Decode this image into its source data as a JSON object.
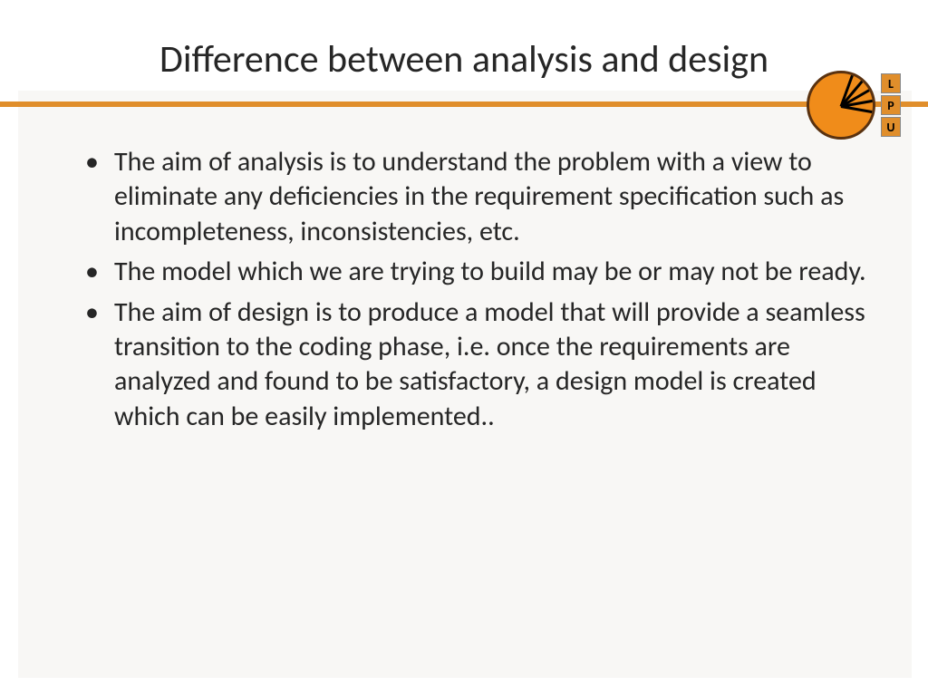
{
  "title": "Difference between analysis and design",
  "logo": {
    "letters": [
      "L",
      "P",
      "U"
    ],
    "circle_fill": "#f08c1a",
    "circle_border": "#5a3210",
    "ray_color": "#000000",
    "letter_bg": "#e08e2b"
  },
  "rule_color": "#e08e2b",
  "background_panel": "#f8f7f5",
  "text_color": "#262626",
  "title_fontsize": 42,
  "body_fontsize": 30,
  "bullets": [
    "The aim of analysis is to understand the problem with a view to eliminate any  deficiencies in the requirement specification such as incompleteness, inconsistencies, etc.",
    "The model which we are trying to build may be or may not be ready.",
    "The aim of design is to produce a model that will provide a seamless transition to the coding phase, i.e. once the requirements are analyzed and found to be satisfactory, a design model is created which can be easily implemented.."
  ]
}
